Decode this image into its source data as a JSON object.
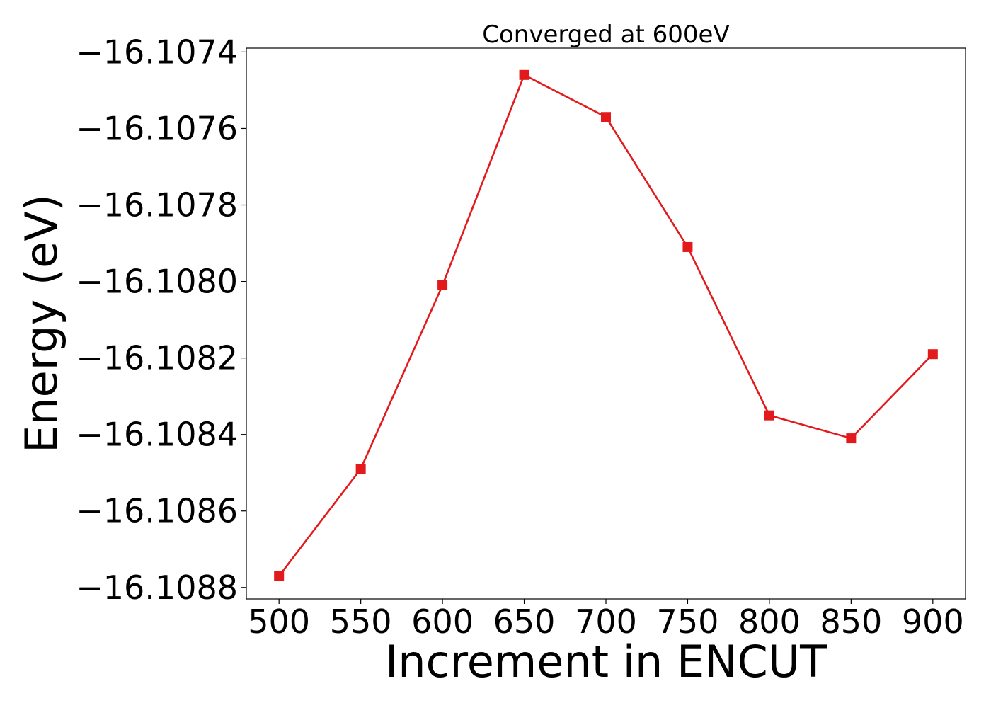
{
  "chart_data": {
    "type": "line",
    "title": "Converged at 600eV",
    "xlabel": "Increment in ENCUT",
    "ylabel": "Energy (eV)",
    "x": [
      500,
      550,
      600,
      650,
      700,
      750,
      800,
      850,
      900
    ],
    "series": [
      {
        "values": [
          -16.10877,
          -16.10849,
          -16.10801,
          -16.10746,
          -16.10757,
          -16.10791,
          -16.10835,
          -16.10841,
          -16.10819
        ],
        "color": "#e31a1c",
        "marker": "square"
      }
    ],
    "xticks": [
      500,
      550,
      600,
      650,
      700,
      750,
      800,
      850,
      900
    ],
    "xtick_labels": [
      "500",
      "550",
      "600",
      "650",
      "700",
      "750",
      "800",
      "850",
      "900"
    ],
    "yticks": [
      -16.1074,
      -16.1076,
      -16.1078,
      -16.108,
      -16.1082,
      -16.1084,
      -16.1086,
      -16.1088
    ],
    "ytick_labels": [
      "−16.1074",
      "−16.1076",
      "−16.1078",
      "−16.1080",
      "−16.1082",
      "−16.1084",
      "−16.1086",
      "−16.1088"
    ],
    "xlim": [
      480,
      920
    ],
    "ylim": [
      -16.10883,
      -16.10739
    ],
    "grid": false,
    "legend": "none"
  }
}
